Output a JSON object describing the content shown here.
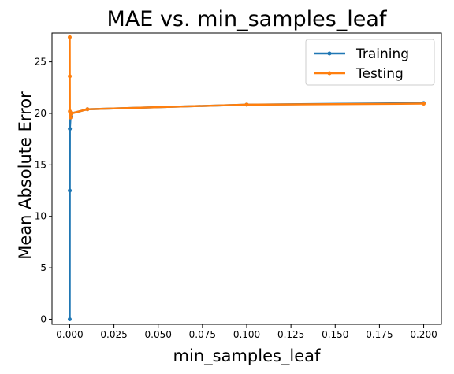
{
  "chart_data": {
    "type": "line",
    "title": "MAE vs. min_samples_leaf",
    "xlabel": "min_samples_leaf",
    "ylabel": "Mean Absolute Error",
    "xlim": [
      -0.01,
      0.21
    ],
    "ylim": [
      -0.5,
      27.8
    ],
    "x_ticks": [
      0.0,
      0.025,
      0.05,
      0.075,
      0.1,
      0.125,
      0.15,
      0.175,
      0.2
    ],
    "x_tick_labels": [
      "0.000",
      "0.025",
      "0.050",
      "0.075",
      "0.100",
      "0.125",
      "0.150",
      "0.175",
      "0.200"
    ],
    "y_ticks": [
      0,
      5,
      10,
      15,
      20,
      25
    ],
    "y_tick_labels": [
      "0",
      "5",
      "10",
      "15",
      "20",
      "25"
    ],
    "grid": false,
    "legend_position": "top-right",
    "series": [
      {
        "name": "Training",
        "color": "#1f77b4",
        "x": [
          1e-05,
          5e-05,
          0.0001,
          0.0005,
          0.001,
          0.01,
          0.1,
          0.2
        ],
        "y": [
          0.0,
          12.5,
          18.5,
          19.7,
          20.0,
          20.4,
          20.85,
          21.0
        ]
      },
      {
        "name": "Testing",
        "color": "#ff7f0e",
        "x": [
          1e-05,
          5e-05,
          0.0001,
          0.0005,
          0.001,
          0.01,
          0.1,
          0.2
        ],
        "y": [
          27.4,
          23.6,
          20.2,
          19.6,
          20.0,
          20.4,
          20.85,
          20.95
        ]
      }
    ]
  }
}
